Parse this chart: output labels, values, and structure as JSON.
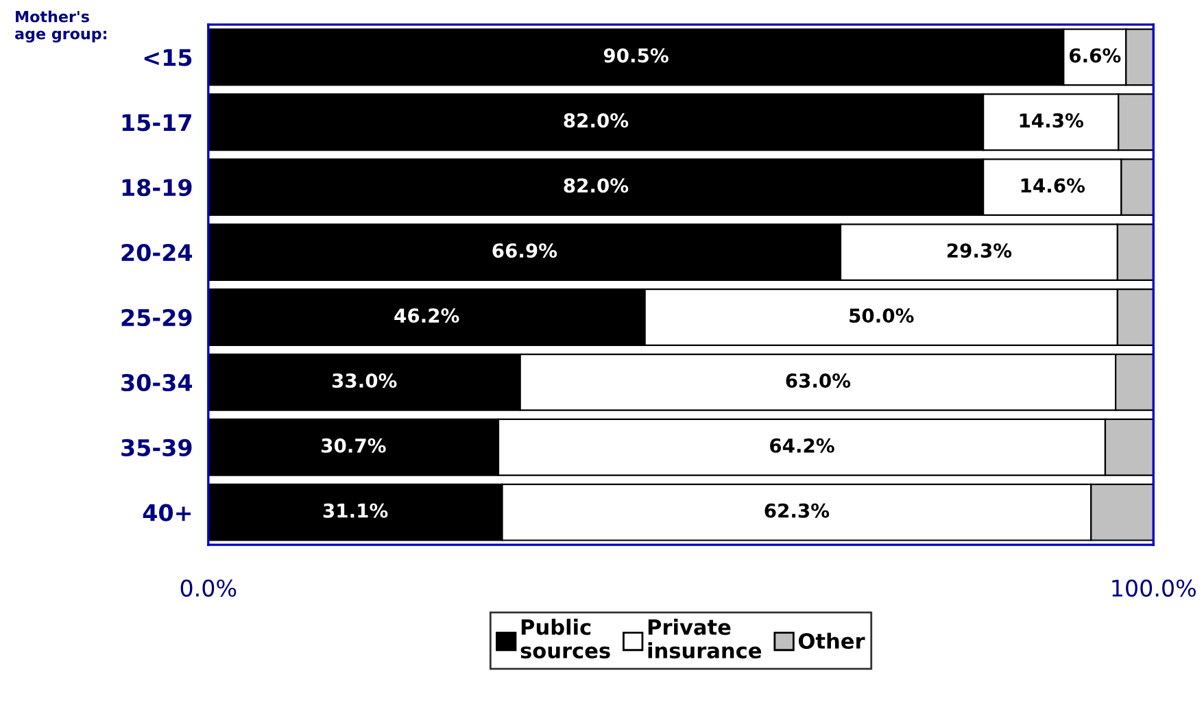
{
  "chart_data": {
    "type": "bar",
    "orientation": "horizontal",
    "stacked": true,
    "ylabel": "Mother's\nage group:",
    "categories": [
      "<15",
      "15-17",
      "18-19",
      "20-24",
      "25-29",
      "30-34",
      "35-39",
      "40+"
    ],
    "series": [
      {
        "name": "Public\nsources",
        "color": "#000000",
        "values": [
          90.5,
          82.0,
          82.0,
          66.9,
          46.2,
          33.0,
          30.7,
          31.1
        ],
        "value_labels": [
          "90.5%",
          "82.0%",
          "82.0%",
          "66.9%",
          "46.2%",
          "33.0%",
          "30.7%",
          "31.1%"
        ]
      },
      {
        "name": "Private\ninsurance",
        "color": "#ffffff",
        "values": [
          6.6,
          14.3,
          14.6,
          29.3,
          50.0,
          63.0,
          64.2,
          62.3
        ],
        "value_labels": [
          "6.6%",
          "14.3%",
          "14.6%",
          "29.3%",
          "50.0%",
          "63.0%",
          "64.2%",
          "62.3%"
        ]
      },
      {
        "name": "Other",
        "color": "#c0c0c0",
        "values": [
          2.9,
          3.7,
          3.4,
          3.8,
          3.8,
          4.0,
          5.1,
          6.6
        ]
      }
    ],
    "xlim": [
      0,
      100
    ],
    "xticks": [
      {
        "value": 0,
        "label": "0.0%"
      },
      {
        "value": 100,
        "label": "100.0%"
      }
    ],
    "legend": "bottom"
  }
}
